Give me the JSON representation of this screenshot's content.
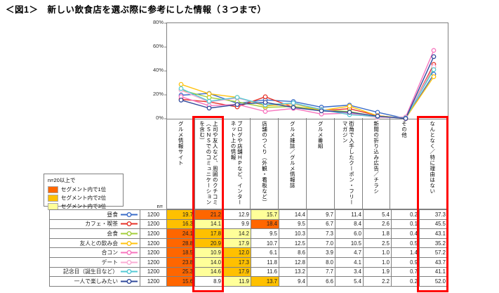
{
  "title": "＜図1＞　新しい飲食店を選ぶ際に参考にした情報（３つまで）",
  "legend": {
    "note": "n=20以上で",
    "items": [
      {
        "label": "セグメント内で1位",
        "color": "#FF6600"
      },
      {
        "label": "セグメント内で2位",
        "color": "#FFC000"
      },
      {
        "label": "セグメント内で3位",
        "color": "#FFFF99"
      }
    ]
  },
  "table": {
    "n_header": "n="
  },
  "chart_data": {
    "type": "line",
    "title": "新しい飲食店を選ぶ際に参考にした情報（３つまで）",
    "ylim": [
      0,
      80
    ],
    "ytick_labels": [
      "80%",
      "60%",
      "40%",
      "20%",
      "0%"
    ],
    "grid": false,
    "legend_position": "table-left",
    "highlighted_categories": [
      1,
      9
    ],
    "rank_colors": {
      "1": "#FF6600",
      "2": "#FFC000",
      "3": "#FFFF99"
    },
    "rank_scope_note": "top3 computed over first 9 categories only",
    "categories": [
      "グルメ情報サイト",
      "上司や友人など、周囲のクチコミ（ＳＮＳでのコミュニケーションを含む）",
      "ブログや店舗ＨＰなど、インターネット上の情報",
      "店舗のつくり（外観・看板など）",
      "グルメ雑誌／グルメ情報誌",
      "グルメ番組",
      "街角で入手したクーポン・フリーマガジン",
      "新聞の折り込み広告／チラシ",
      "その他",
      "なんとなく／特に理由はない"
    ],
    "series": [
      {
        "name": "昼食",
        "n": "1200",
        "color": "#3A6CC8",
        "values": [
          19.7,
          21.2,
          12.9,
          15.7,
          14.4,
          9.7,
          11.4,
          5.4,
          0.2,
          37.3
        ]
      },
      {
        "name": "カフェ・喫茶",
        "n": "1200",
        "color": "#E53228",
        "values": [
          16.3,
          14.1,
          9.9,
          18.4,
          9.5,
          6.7,
          8.4,
          2.6,
          0.1,
          45.5
        ]
      },
      {
        "name": "会食",
        "n": "1200",
        "color": "#A3CE3A",
        "values": [
          24.1,
          17.8,
          14.2,
          9.5,
          10.3,
          7.3,
          6.0,
          1.8,
          0.4,
          43.1
        ]
      },
      {
        "name": "友人との飲み会",
        "n": "1200",
        "color": "#FFC20E",
        "values": [
          28.8,
          20.9,
          17.9,
          10.7,
          12.5,
          7.0,
          10.5,
          2.5,
          0.5,
          35.2
        ]
      },
      {
        "name": "合コン",
        "n": "1200",
        "color": "#F775BE",
        "values": [
          18.5,
          10.9,
          12.0,
          6.1,
          8.6,
          3.9,
          4.7,
          1.0,
          1.4,
          57.2
        ]
      },
      {
        "name": "デート",
        "n": "1200",
        "color": "#F9ACD4",
        "values": [
          23.8,
          14.0,
          17.3,
          11.8,
          12.8,
          8.0,
          4.1,
          1.0,
          0.9,
          43.7
        ]
      },
      {
        "name": "記念日（誕生日など）",
        "n": "1200",
        "color": "#55CAD4",
        "values": [
          25.3,
          14.6,
          17.9,
          11.6,
          13.2,
          7.7,
          3.4,
          1.9,
          0.7,
          41.1
        ]
      },
      {
        "name": "一人で楽しみたい",
        "n": "1200",
        "color": "#31499B",
        "values": [
          15.6,
          8.9,
          11.9,
          13.7,
          9.4,
          6.6,
          5.4,
          2.2,
          0.2,
          52.0
        ]
      }
    ]
  }
}
